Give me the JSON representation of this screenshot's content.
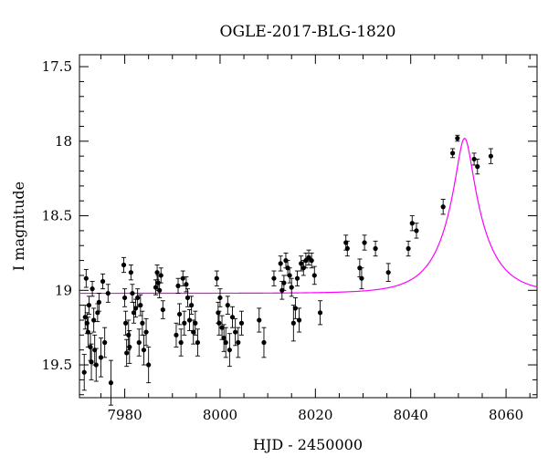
{
  "chart_data": {
    "type": "scatter",
    "title": "OGLE-2017-BLG-1820",
    "xlabel": "HJD - 2450000",
    "ylabel": "I magnitude",
    "xlim": [
      7970.5,
      8066.5
    ],
    "ylim": [
      19.72,
      17.42
    ],
    "y_inverted": true,
    "grid": false,
    "colors": {
      "points": "#000000",
      "errorbars": "#000000",
      "model": "#ff00ff",
      "frame": "#000000"
    },
    "x_ticks": [
      {
        "value": 7980,
        "label": "7980"
      },
      {
        "value": 8000,
        "label": "8000"
      },
      {
        "value": 8020,
        "label": "8020"
      },
      {
        "value": 8040,
        "label": "8040"
      },
      {
        "value": 8060,
        "label": "8060"
      }
    ],
    "y_ticks": [
      {
        "value": 17.5,
        "label": "17.5"
      },
      {
        "value": 18,
        "label": "18"
      },
      {
        "value": 18.5,
        "label": "18.5"
      },
      {
        "value": 19,
        "label": "19"
      },
      {
        "value": 19.5,
        "label": "19.5"
      }
    ],
    "model": {
      "name": "",
      "baseline": 19.02,
      "peak_mag": 17.98,
      "t0": 8051.3,
      "tE": 8.0
    },
    "points": [
      {
        "x": 7971.5,
        "y": 19.55,
        "e": 0.12
      },
      {
        "x": 7971.7,
        "y": 19.18,
        "e": 0.08
      },
      {
        "x": 7971.9,
        "y": 18.92,
        "e": 0.06
      },
      {
        "x": 7972.1,
        "y": 19.22,
        "e": 0.07
      },
      {
        "x": 7972.3,
        "y": 19.28,
        "e": 0.1
      },
      {
        "x": 7972.5,
        "y": 19.1,
        "e": 0.06
      },
      {
        "x": 7972.8,
        "y": 19.38,
        "e": 0.09
      },
      {
        "x": 7973.0,
        "y": 19.48,
        "e": 0.12
      },
      {
        "x": 7973.2,
        "y": 18.99,
        "e": 0.05
      },
      {
        "x": 7973.5,
        "y": 19.2,
        "e": 0.08
      },
      {
        "x": 7973.7,
        "y": 19.4,
        "e": 0.1
      },
      {
        "x": 7974.0,
        "y": 19.5,
        "e": 0.11
      },
      {
        "x": 7974.3,
        "y": 19.15,
        "e": 0.06
      },
      {
        "x": 7974.6,
        "y": 19.08,
        "e": 0.06
      },
      {
        "x": 7975.0,
        "y": 19.45,
        "e": 0.13
      },
      {
        "x": 7975.4,
        "y": 18.94,
        "e": 0.05
      },
      {
        "x": 7975.8,
        "y": 19.35,
        "e": 0.1
      },
      {
        "x": 7976.5,
        "y": 19.02,
        "e": 0.06
      },
      {
        "x": 7977.1,
        "y": 19.62,
        "e": 0.15
      },
      {
        "x": 7979.8,
        "y": 18.83,
        "e": 0.05
      },
      {
        "x": 7980.0,
        "y": 19.05,
        "e": 0.06
      },
      {
        "x": 7980.2,
        "y": 19.22,
        "e": 0.08
      },
      {
        "x": 7980.4,
        "y": 19.42,
        "e": 0.09
      },
      {
        "x": 7980.8,
        "y": 19.3,
        "e": 0.1
      },
      {
        "x": 7981.0,
        "y": 19.38,
        "e": 0.11
      },
      {
        "x": 7981.3,
        "y": 18.88,
        "e": 0.05
      },
      {
        "x": 7981.6,
        "y": 19.02,
        "e": 0.06
      },
      {
        "x": 7981.9,
        "y": 19.15,
        "e": 0.07
      },
      {
        "x": 7982.3,
        "y": 19.12,
        "e": 0.06
      },
      {
        "x": 7982.7,
        "y": 19.05,
        "e": 0.06
      },
      {
        "x": 7983.0,
        "y": 19.35,
        "e": 0.09
      },
      {
        "x": 7983.3,
        "y": 19.1,
        "e": 0.07
      },
      {
        "x": 7983.7,
        "y": 19.22,
        "e": 0.08
      },
      {
        "x": 7984.0,
        "y": 19.4,
        "e": 0.1
      },
      {
        "x": 7984.5,
        "y": 19.28,
        "e": 0.09
      },
      {
        "x": 7985.0,
        "y": 19.5,
        "e": 0.12
      },
      {
        "x": 7986.5,
        "y": 18.98,
        "e": 0.05
      },
      {
        "x": 7986.8,
        "y": 18.88,
        "e": 0.05
      },
      {
        "x": 7987.0,
        "y": 18.95,
        "e": 0.05
      },
      {
        "x": 7987.3,
        "y": 19.0,
        "e": 0.05
      },
      {
        "x": 7987.6,
        "y": 18.9,
        "e": 0.05
      },
      {
        "x": 7988.0,
        "y": 19.13,
        "e": 0.06
      },
      {
        "x": 7990.8,
        "y": 19.3,
        "e": 0.08
      },
      {
        "x": 7991.2,
        "y": 18.97,
        "e": 0.05
      },
      {
        "x": 7991.5,
        "y": 19.16,
        "e": 0.07
      },
      {
        "x": 7991.8,
        "y": 19.35,
        "e": 0.09
      },
      {
        "x": 7992.2,
        "y": 18.92,
        "e": 0.05
      },
      {
        "x": 7992.5,
        "y": 19.22,
        "e": 0.08
      },
      {
        "x": 7992.9,
        "y": 18.96,
        "e": 0.05
      },
      {
        "x": 7993.2,
        "y": 19.05,
        "e": 0.06
      },
      {
        "x": 7993.6,
        "y": 19.2,
        "e": 0.07
      },
      {
        "x": 7994.0,
        "y": 19.1,
        "e": 0.06
      },
      {
        "x": 7994.4,
        "y": 19.28,
        "e": 0.08
      },
      {
        "x": 7994.8,
        "y": 19.22,
        "e": 0.08
      },
      {
        "x": 7995.3,
        "y": 19.35,
        "e": 0.09
      },
      {
        "x": 7999.3,
        "y": 18.92,
        "e": 0.05
      },
      {
        "x": 7999.6,
        "y": 19.15,
        "e": 0.07
      },
      {
        "x": 7999.8,
        "y": 19.22,
        "e": 0.08
      },
      {
        "x": 8000.0,
        "y": 19.05,
        "e": 0.06
      },
      {
        "x": 8000.4,
        "y": 19.25,
        "e": 0.08
      },
      {
        "x": 8000.8,
        "y": 19.32,
        "e": 0.09
      },
      {
        "x": 8001.2,
        "y": 19.35,
        "e": 0.1
      },
      {
        "x": 8001.6,
        "y": 19.1,
        "e": 0.06
      },
      {
        "x": 8002.0,
        "y": 19.4,
        "e": 0.11
      },
      {
        "x": 8002.6,
        "y": 19.18,
        "e": 0.07
      },
      {
        "x": 8003.2,
        "y": 19.28,
        "e": 0.09
      },
      {
        "x": 8003.8,
        "y": 19.35,
        "e": 0.1
      },
      {
        "x": 8004.5,
        "y": 19.22,
        "e": 0.08
      },
      {
        "x": 8008.2,
        "y": 19.2,
        "e": 0.08
      },
      {
        "x": 8009.2,
        "y": 19.35,
        "e": 0.1
      },
      {
        "x": 8011.3,
        "y": 18.92,
        "e": 0.05
      },
      {
        "x": 8012.7,
        "y": 18.82,
        "e": 0.05
      },
      {
        "x": 8013.0,
        "y": 19.0,
        "e": 0.06
      },
      {
        "x": 8013.4,
        "y": 18.95,
        "e": 0.05
      },
      {
        "x": 8013.8,
        "y": 18.8,
        "e": 0.05
      },
      {
        "x": 8014.2,
        "y": 18.85,
        "e": 0.05
      },
      {
        "x": 8014.6,
        "y": 18.9,
        "e": 0.05
      },
      {
        "x": 8015.0,
        "y": 18.98,
        "e": 0.06
      },
      {
        "x": 8015.4,
        "y": 19.22,
        "e": 0.12
      },
      {
        "x": 8015.8,
        "y": 19.12,
        "e": 0.07
      },
      {
        "x": 8016.2,
        "y": 18.92,
        "e": 0.05
      },
      {
        "x": 8016.6,
        "y": 19.2,
        "e": 0.08
      },
      {
        "x": 8017.0,
        "y": 18.82,
        "e": 0.05
      },
      {
        "x": 8017.5,
        "y": 18.85,
        "e": 0.05
      },
      {
        "x": 8018.0,
        "y": 18.8,
        "e": 0.05
      },
      {
        "x": 8018.6,
        "y": 18.78,
        "e": 0.05
      },
      {
        "x": 8019.2,
        "y": 18.8,
        "e": 0.05
      },
      {
        "x": 8019.8,
        "y": 18.9,
        "e": 0.06
      },
      {
        "x": 8021.0,
        "y": 19.15,
        "e": 0.08
      },
      {
        "x": 8026.4,
        "y": 18.68,
        "e": 0.05
      },
      {
        "x": 8026.7,
        "y": 18.72,
        "e": 0.05
      },
      {
        "x": 8029.3,
        "y": 18.85,
        "e": 0.06
      },
      {
        "x": 8029.7,
        "y": 18.92,
        "e": 0.07
      },
      {
        "x": 8030.3,
        "y": 18.68,
        "e": 0.05
      },
      {
        "x": 8032.6,
        "y": 18.72,
        "e": 0.05
      },
      {
        "x": 8035.3,
        "y": 18.88,
        "e": 0.06
      },
      {
        "x": 8039.5,
        "y": 18.72,
        "e": 0.05
      },
      {
        "x": 8040.3,
        "y": 18.55,
        "e": 0.05
      },
      {
        "x": 8041.2,
        "y": 18.6,
        "e": 0.05
      },
      {
        "x": 8046.8,
        "y": 18.44,
        "e": 0.05
      },
      {
        "x": 8048.8,
        "y": 18.08,
        "e": 0.03
      },
      {
        "x": 8049.8,
        "y": 17.98,
        "e": 0.02
      },
      {
        "x": 8053.3,
        "y": 18.12,
        "e": 0.04
      },
      {
        "x": 8054.0,
        "y": 18.17,
        "e": 0.05
      },
      {
        "x": 8056.8,
        "y": 18.1,
        "e": 0.05
      }
    ]
  }
}
